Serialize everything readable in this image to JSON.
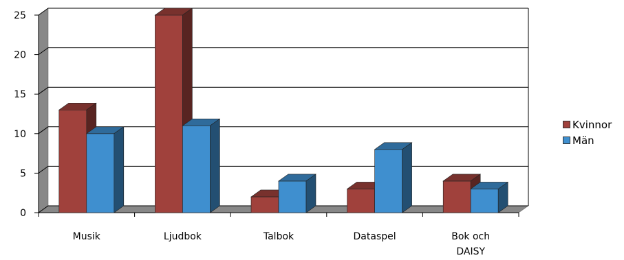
{
  "chart_data": {
    "type": "bar",
    "categories": [
      "Musik",
      "Ljudbok",
      "Talbok",
      "Dataspel",
      "Bok och DAISY"
    ],
    "series": [
      {
        "name": "Kvinnor",
        "values": [
          13,
          25,
          2,
          3,
          4
        ],
        "color": "#a0413c"
      },
      {
        "name": "Män",
        "values": [
          10,
          11,
          4,
          8,
          3
        ],
        "color": "#3f8fcf"
      }
    ],
    "ylim": [
      0,
      25
    ],
    "yticks": [
      0,
      5,
      10,
      15,
      20,
      25
    ],
    "grid": true,
    "legend_position": "right",
    "style": "3d-clustered-column"
  }
}
